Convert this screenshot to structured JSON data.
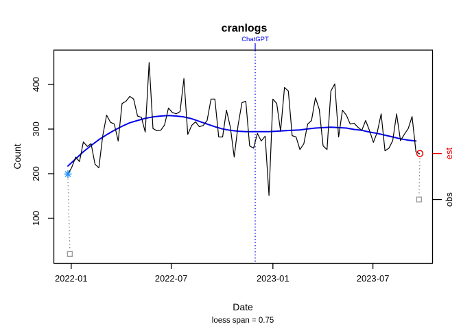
{
  "title": "cranlogs",
  "subtitle": "loess span = 0.75",
  "axes": {
    "x": {
      "label": "Date",
      "ticks": [
        "2022-01",
        "2022-07",
        "2023-01",
        "2023-07"
      ]
    },
    "y": {
      "label": "Count",
      "ticks": [
        "100",
        "200",
        "300",
        "400"
      ]
    },
    "right": {
      "est_label": "est",
      "obs_label": "obs"
    }
  },
  "annotation": {
    "label": "ChatGPT",
    "date": "2022-11-30",
    "week": 48.43
  },
  "colors": {
    "series": "#000000",
    "loess": "#0000EE",
    "vline": "#0000EE",
    "annotation_text": "#0000EE",
    "est": "#EE0000",
    "obs_marker": "#999999",
    "start_marker": "#1E90FF",
    "connector": "#7F7F7F"
  },
  "chart_data": {
    "type": "line",
    "title": "cranlogs",
    "xlabel": "Date",
    "ylabel": "Count",
    "sub_label": "loess span = 0.75",
    "x_unit": "weekly points, week 0 = 2021-12-26, one point per 7 days",
    "x_tick_dates": [
      "2022-01",
      "2022-07",
      "2023-01",
      "2023-07"
    ],
    "ylim": [
      0,
      478
    ],
    "xlim_weeks": [
      -3.7,
      94.2
    ],
    "grid": false,
    "legend": "none",
    "series": [
      {
        "name": "weekly downloads",
        "type": "line",
        "color": "#000000",
        "values": [
          200,
          215,
          238,
          228,
          272,
          262,
          268,
          222,
          214,
          285,
          332,
          316,
          312,
          274,
          358,
          363,
          374,
          368,
          330,
          327,
          294,
          450,
          302,
          297,
          298,
          310,
          348,
          338,
          335,
          340,
          414,
          289,
          309,
          317,
          306,
          309,
          320,
          368,
          368,
          283,
          283,
          343,
          305,
          238,
          309,
          360,
          363,
          263,
          258,
          291,
          274,
          285,
          152,
          368,
          358,
          296,
          394,
          386,
          286,
          283,
          255,
          268,
          312,
          320,
          371,
          345,
          263,
          255,
          386,
          402,
          283,
          343,
          332,
          312,
          314,
          305,
          298,
          320,
          297,
          271,
          294,
          335,
          252,
          258,
          275,
          335,
          275,
          289,
          302,
          329,
          250,
          245
        ]
      },
      {
        "name": "loess fit (span = 0.75)",
        "type": "smooth",
        "color": "#0000EE",
        "points": [
          [
            0,
            218
          ],
          [
            2,
            234
          ],
          [
            4,
            250
          ],
          [
            6,
            264
          ],
          [
            8,
            277
          ],
          [
            10,
            288
          ],
          [
            12,
            298
          ],
          [
            14,
            307
          ],
          [
            16,
            315
          ],
          [
            18,
            320
          ],
          [
            20,
            325
          ],
          [
            22,
            328
          ],
          [
            24,
            330
          ],
          [
            26,
            331
          ],
          [
            28,
            330
          ],
          [
            30,
            328
          ],
          [
            32,
            324
          ],
          [
            34,
            318
          ],
          [
            36,
            312
          ],
          [
            38,
            306
          ],
          [
            40,
            301
          ],
          [
            42,
            298
          ],
          [
            44,
            296
          ],
          [
            46,
            295
          ],
          [
            48,
            295
          ],
          [
            50,
            295
          ],
          [
            52,
            295
          ],
          [
            54,
            296
          ],
          [
            56,
            297
          ],
          [
            58,
            298
          ],
          [
            60,
            299
          ],
          [
            62,
            301
          ],
          [
            64,
            303
          ],
          [
            66,
            304
          ],
          [
            68,
            305
          ],
          [
            70,
            304
          ],
          [
            72,
            303
          ],
          [
            74,
            300
          ],
          [
            76,
            298
          ],
          [
            78,
            294
          ],
          [
            80,
            291
          ],
          [
            82,
            287
          ],
          [
            84,
            283
          ],
          [
            86,
            279
          ],
          [
            88,
            276
          ],
          [
            90,
            274
          ]
        ]
      }
    ],
    "vline": {
      "label": "ChatGPT",
      "date": "2022-11-30",
      "week": 48.43,
      "style": "dotted",
      "color": "#0000EE"
    },
    "markers": [
      {
        "name": "start-estimate",
        "shape": "asterisk",
        "color": "#1E90FF",
        "week": 0,
        "value": 200
      },
      {
        "name": "start-observed",
        "shape": "square",
        "color": "#999999",
        "week": 0.5,
        "value": 21
      },
      {
        "name": "end-estimate",
        "shape": "circle",
        "color": "#EE0000",
        "week": 91,
        "value": 246
      },
      {
        "name": "end-observed",
        "shape": "square",
        "color": "#999999",
        "week": 90.8,
        "value": 143
      }
    ],
    "connectors": [
      {
        "from": "start-estimate",
        "to": "start-observed"
      },
      {
        "from": "end-estimate",
        "to": "end-observed"
      }
    ],
    "right_axis_ticks": [
      {
        "label": "est",
        "value": 246,
        "color": "#EE0000"
      },
      {
        "label": "obs",
        "value": 143,
        "color": "#000000"
      }
    ]
  }
}
